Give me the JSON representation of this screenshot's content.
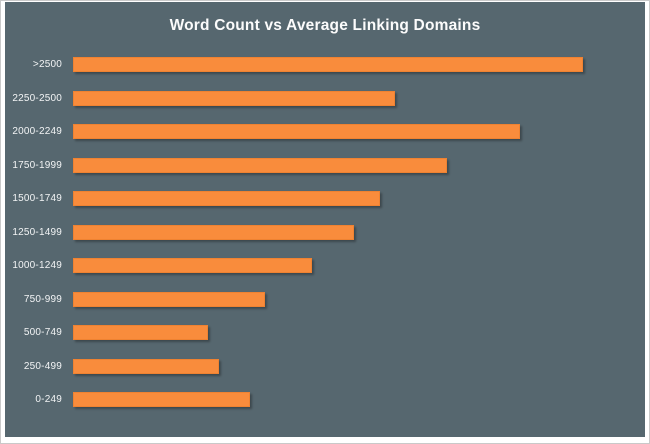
{
  "title": "Word Count vs Average Linking Domains",
  "colors": {
    "panel_background": "#56676F",
    "outer_border": "#C9C9C9",
    "bar_fill": "#F98C3C",
    "bar_border": "#EF8231",
    "bar_shadow": "rgba(0,0,0,0.3)",
    "title_text": "#FCFCFC",
    "label_text": "#F2F4F5"
  },
  "chart_data": {
    "type": "bar",
    "orientation": "horizontal",
    "title": "Word Count vs Average Linking Domains",
    "xlabel": "",
    "ylabel": "",
    "grid": false,
    "legend": false,
    "axes_labeled": false,
    "xlim": [
      0,
      11
    ],
    "categories": [
      ">2500",
      "2250-2500",
      "2000-2249",
      "1750-1999",
      "1500-1749",
      "1250-1499",
      "1000-1249",
      "750-999",
      "500-749",
      "250-499",
      "0-249"
    ],
    "values": [
      9.8,
      6.2,
      8.6,
      7.2,
      5.9,
      5.4,
      4.6,
      3.7,
      2.6,
      2.8,
      3.4
    ]
  }
}
